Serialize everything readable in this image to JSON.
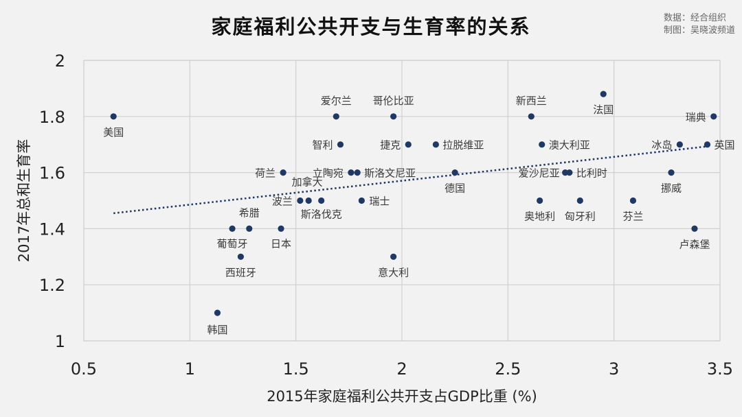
{
  "title": "家庭福利公共开支与生育率的关系",
  "source_lines": [
    "数据：经合组织",
    "制图：吴晓波频道"
  ],
  "colors": {
    "point": "#1f3864",
    "trend": "#1f3864",
    "grid": "#d0d0d0",
    "background": "#f2f2f2"
  },
  "chart_data": {
    "type": "scatter",
    "title": "家庭福利公共开支与生育率的关系",
    "xlabel": "2015年家庭福利公共开支占GDP比重 (%)",
    "ylabel": "2017年总和生育率",
    "xlim": [
      0.5,
      3.5
    ],
    "ylim": [
      1,
      2
    ],
    "xticks": [
      "0.5",
      "1",
      "1.5",
      "2",
      "2.5",
      "3",
      "3.5"
    ],
    "yticks": [
      "1",
      "1.2",
      "1.4",
      "1.6",
      "1.8",
      "2"
    ],
    "grid": true,
    "trendline": {
      "style": "dotted",
      "x": [
        0.64,
        3.46
      ],
      "y": [
        1.455,
        1.695
      ]
    },
    "points": [
      {
        "label": "美国",
        "x": 0.64,
        "y": 1.8
      },
      {
        "label": "韩国",
        "x": 1.13,
        "y": 1.1
      },
      {
        "label": "西班牙",
        "x": 1.24,
        "y": 1.3
      },
      {
        "label": "葡萄牙",
        "x": 1.2,
        "y": 1.4
      },
      {
        "label": "希腊",
        "x": 1.28,
        "y": 1.4
      },
      {
        "label": "日本",
        "x": 1.43,
        "y": 1.4
      },
      {
        "label": "荷兰",
        "x": 1.44,
        "y": 1.6
      },
      {
        "label": "波兰",
        "x": 1.52,
        "y": 1.5
      },
      {
        "label": "加拿大",
        "x": 1.56,
        "y": 1.5
      },
      {
        "label": "斯洛伐克",
        "x": 1.62,
        "y": 1.5
      },
      {
        "label": "立陶宛",
        "x": 1.76,
        "y": 1.6
      },
      {
        "label": "斯洛文尼亚",
        "x": 1.79,
        "y": 1.6
      },
      {
        "label": "爱尔兰",
        "x": 1.69,
        "y": 1.8
      },
      {
        "label": "智利",
        "x": 1.71,
        "y": 1.7
      },
      {
        "label": "瑞士",
        "x": 1.81,
        "y": 1.5
      },
      {
        "label": "意大利",
        "x": 1.96,
        "y": 1.3
      },
      {
        "label": "哥伦比亚",
        "x": 1.96,
        "y": 1.8
      },
      {
        "label": "捷克",
        "x": 2.03,
        "y": 1.7
      },
      {
        "label": "拉脱维亚",
        "x": 2.16,
        "y": 1.7
      },
      {
        "label": "德国",
        "x": 2.25,
        "y": 1.6
      },
      {
        "label": "新西兰",
        "x": 2.61,
        "y": 1.8
      },
      {
        "label": "澳大利亚",
        "x": 2.66,
        "y": 1.7
      },
      {
        "label": "奥地利",
        "x": 2.65,
        "y": 1.5
      },
      {
        "label": "爱沙尼亚",
        "x": 2.77,
        "y": 1.6
      },
      {
        "label": "比利时",
        "x": 2.79,
        "y": 1.6
      },
      {
        "label": "匈牙利",
        "x": 2.84,
        "y": 1.5
      },
      {
        "label": "法国",
        "x": 2.95,
        "y": 1.88
      },
      {
        "label": "芬兰",
        "x": 3.09,
        "y": 1.5
      },
      {
        "label": "挪威",
        "x": 3.27,
        "y": 1.6
      },
      {
        "label": "冰岛",
        "x": 3.31,
        "y": 1.7
      },
      {
        "label": "瑞典",
        "x": 3.47,
        "y": 1.8
      },
      {
        "label": "英国",
        "x": 3.44,
        "y": 1.7
      },
      {
        "label": "卢森堡",
        "x": 3.38,
        "y": 1.4
      }
    ]
  }
}
